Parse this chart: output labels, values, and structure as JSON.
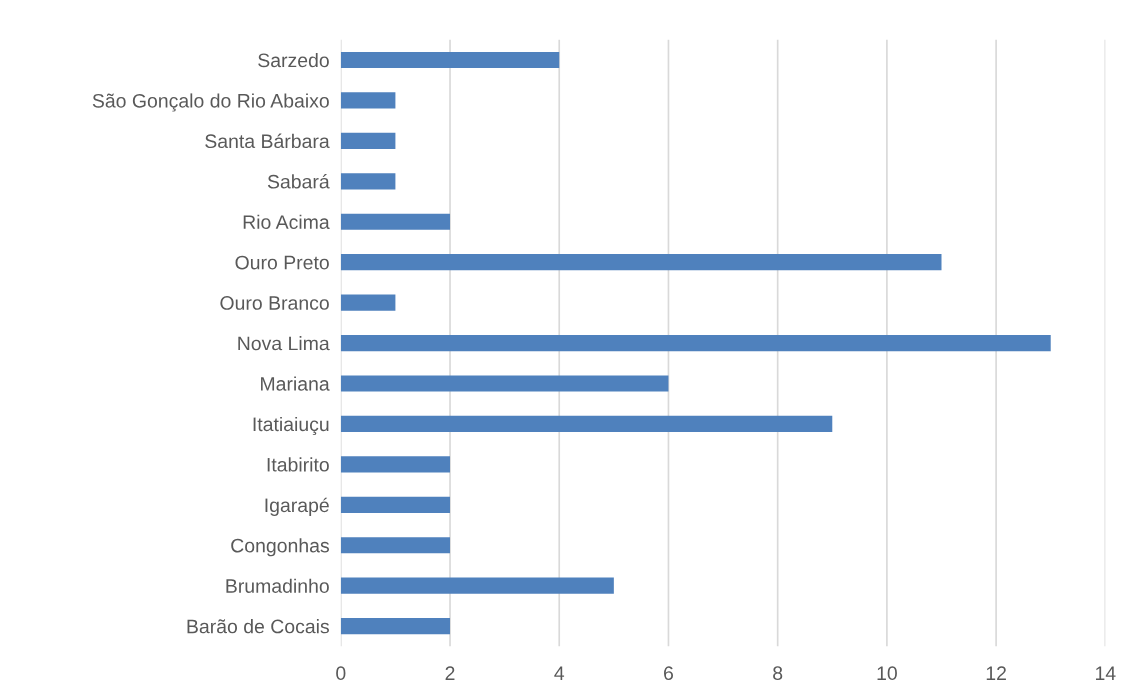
{
  "chart_data": {
    "type": "bar",
    "orientation": "horizontal",
    "categories": [
      "Sarzedo",
      "São Gonçalo do Rio Abaixo",
      "Santa Bárbara",
      "Sabará",
      "Rio Acima",
      "Ouro Preto",
      "Ouro Branco",
      "Nova Lima",
      "Mariana",
      "Itatiaiuçu",
      "Itabirito",
      "Igarapé",
      "Congonhas",
      "Brumadinho",
      "Barão de Cocais"
    ],
    "values": [
      4,
      1,
      1,
      1,
      2,
      11,
      1,
      13,
      6,
      9,
      2,
      2,
      2,
      5,
      2
    ],
    "color": "#4f81bd",
    "xlim": [
      0,
      14
    ],
    "xticks": [
      0,
      2,
      4,
      6,
      8,
      10,
      12,
      14
    ],
    "grid": "x",
    "legend": false
  }
}
